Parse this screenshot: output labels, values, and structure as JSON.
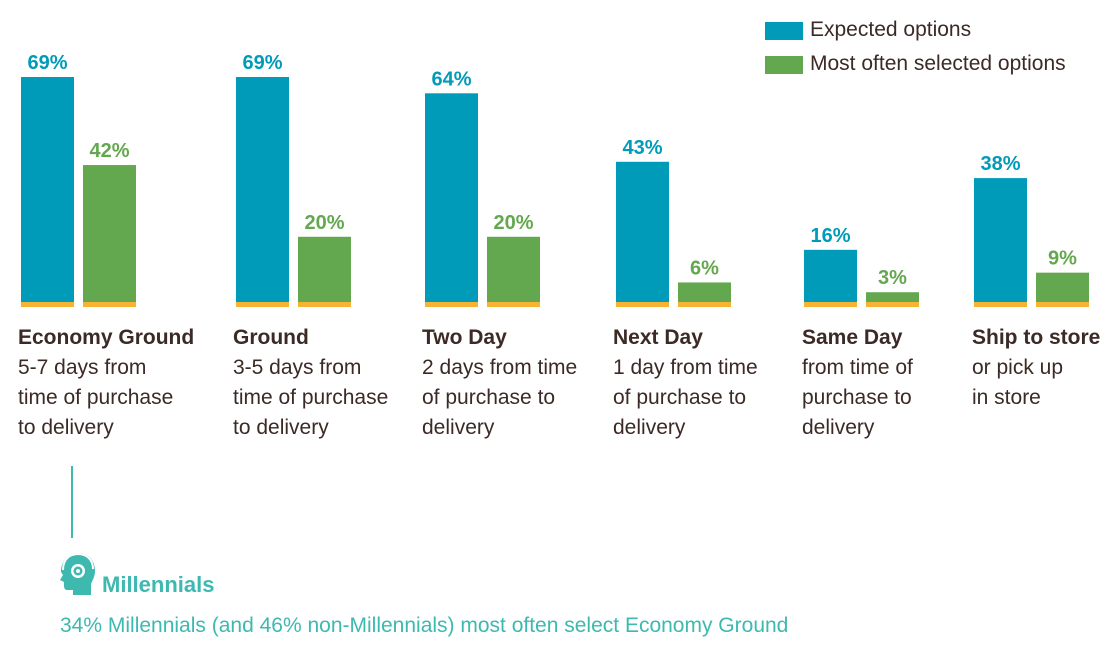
{
  "chart_data": {
    "type": "bar",
    "categories": [
      "Economy Ground",
      "Ground",
      "Two Day",
      "Next Day",
      "Same Day",
      "Ship to store"
    ],
    "category_descriptions": [
      "5-7 days from\ntime of purchase\nto delivery",
      "3-5 days from\ntime of purchase\nto delivery",
      "2 days from time\nof purchase to\ndelivery",
      "1 day from time\nof purchase to\ndelivery",
      "from time of\npurchase to\ndelivery",
      "or pick up\nin store"
    ],
    "series": [
      {
        "name": "Expected options",
        "values": [
          69,
          69,
          64,
          43,
          16,
          38
        ],
        "labels": [
          "69%",
          "69%",
          "64%",
          "43%",
          "16%",
          "38%"
        ],
        "color": "#009bb8"
      },
      {
        "name": "Most often selected options",
        "values": [
          42,
          20,
          20,
          6,
          3,
          9
        ],
        "labels": [
          "42%",
          "20%",
          "20%",
          "6%",
          "3%",
          "9%"
        ],
        "color": "#63a84e"
      }
    ],
    "ylim": [
      0,
      69
    ],
    "baseline_color": "#f7b334",
    "legend_position": "top-right",
    "title": "",
    "xlabel": "",
    "ylabel": ""
  },
  "callout": {
    "title": "Millennials",
    "text": "34% Millennials (and 46% non-Millennials) most often select Economy Ground",
    "color": "#3db9b0",
    "icon": "head-with-headphones-icon"
  }
}
